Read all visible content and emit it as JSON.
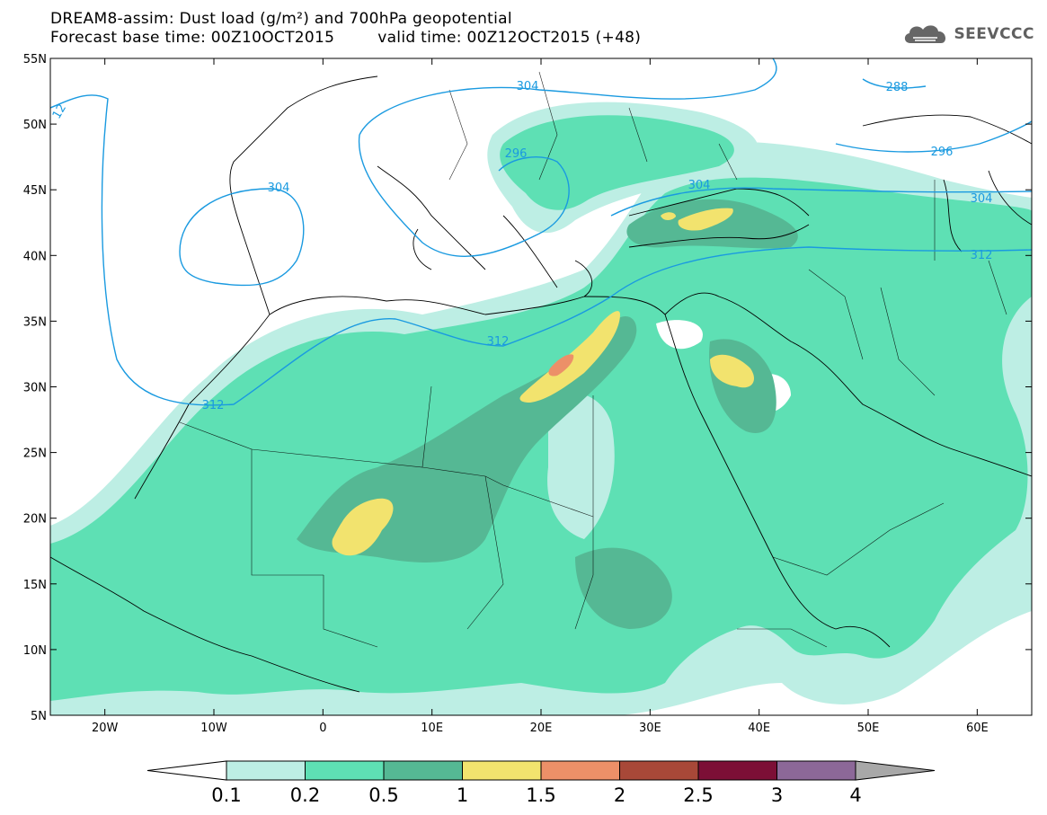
{
  "title": {
    "line1": "DREAM8-assim: Dust load (g/m²) and 700hPa geopotential",
    "base_time": "Forecast base time: 00Z10OCT2015",
    "valid_time": "valid time: 00Z12OCT2015 (+48)"
  },
  "logo": {
    "icon": "cloud-icon",
    "text": "SEEVCCC",
    "color": "#606060"
  },
  "map": {
    "lat_labels": [
      "55N",
      "50N",
      "45N",
      "40N",
      "35N",
      "30N",
      "25N",
      "20N",
      "15N",
      "10N",
      "5N"
    ],
    "lat_values": [
      55,
      50,
      45,
      40,
      35,
      30,
      25,
      20,
      15,
      10,
      5
    ],
    "lon_labels": [
      "20W",
      "10W",
      "0",
      "10E",
      "20E",
      "30E",
      "40E",
      "50E",
      "60E"
    ],
    "lon_values": [
      -20,
      -10,
      0,
      10,
      20,
      30,
      40,
      50,
      60
    ],
    "lon_range": [
      -25,
      65
    ],
    "lat_range": [
      5,
      55
    ],
    "contour_labels": [
      "304",
      "296",
      "304",
      "304",
      "288",
      "296",
      "304",
      "312",
      "312",
      "312",
      "12"
    ],
    "contour_color": "#1a9ae0"
  },
  "colorbar": {
    "labels": [
      "0.1",
      "0.2",
      "0.5",
      "1",
      "1.5",
      "2",
      "2.5",
      "3",
      "4"
    ],
    "colors": [
      "#ffffff",
      "#bdeee4",
      "#5ee0b4",
      "#55b894",
      "#f2e36e",
      "#ec9068",
      "#a84838",
      "#7c0f36",
      "#8c6898",
      "#a8a8a8"
    ]
  }
}
